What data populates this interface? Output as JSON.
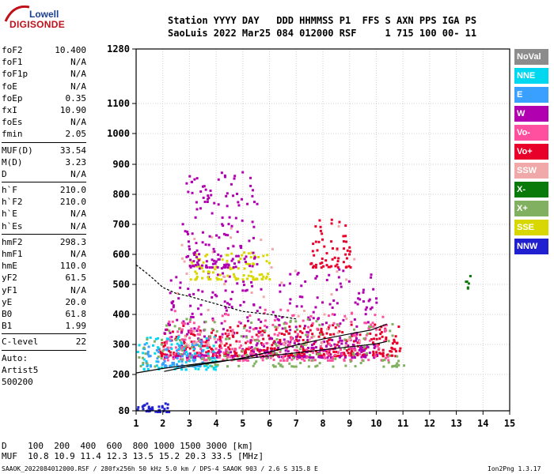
{
  "logo": {
    "top": "Lowell",
    "bottom": "DIGISONDE"
  },
  "header": {
    "line1": "Station YYYY DAY   DDD HHMMSS P1  FFS S AXN PPS IGA PS",
    "line2": "SaoLuis 2022 Mar25 084 012000 RSF     1 715 100 00- 11"
  },
  "params_group1": [
    {
      "name": "foF2",
      "value": "10.400"
    },
    {
      "name": "foF1",
      "value": "N/A"
    },
    {
      "name": "foF1p",
      "value": "N/A"
    },
    {
      "name": "foE",
      "value": "N/A"
    },
    {
      "name": "foEp",
      "value": "0.35"
    },
    {
      "name": "fxI",
      "value": "10.90"
    },
    {
      "name": "foEs",
      "value": "N/A"
    },
    {
      "name": "fmin",
      "value": "2.05"
    }
  ],
  "params_group2": [
    {
      "name": "MUF(D)",
      "value": "33.54"
    },
    {
      "name": "M(D)",
      "value": "3.23"
    },
    {
      "name": "D",
      "value": "N/A"
    }
  ],
  "params_group3": [
    {
      "name": "h`F",
      "value": "210.0"
    },
    {
      "name": "h`F2",
      "value": "210.0"
    },
    {
      "name": "h`E",
      "value": "N/A"
    },
    {
      "name": "h`Es",
      "value": "N/A"
    }
  ],
  "params_group4": [
    {
      "name": "hmF2",
      "value": "298.3"
    },
    {
      "name": "hmF1",
      "value": "N/A"
    },
    {
      "name": "hmE",
      "value": "110.0"
    },
    {
      "name": "yF2",
      "value": "61.5"
    },
    {
      "name": "yF1",
      "value": "N/A"
    },
    {
      "name": "yE",
      "value": "20.0"
    },
    {
      "name": "B0",
      "value": "61.8"
    },
    {
      "name": "B1",
      "value": "1.99"
    }
  ],
  "c_level": {
    "name": "C-level",
    "value": "22"
  },
  "auto": {
    "line1": "Auto:",
    "line2": "Artist5",
    "line3": "500200"
  },
  "legend": [
    {
      "label": "NoVal",
      "color": "#8c8c8c"
    },
    {
      "label": "NNE",
      "color": "#00d8f0"
    },
    {
      "label": "E",
      "color": "#3aa0ff"
    },
    {
      "label": "W",
      "color": "#b000b0"
    },
    {
      "label": "Vo-",
      "color": "#ff50a0"
    },
    {
      "label": "Vo+",
      "color": "#e8002a"
    },
    {
      "label": "SSW",
      "color": "#f0a8a8"
    },
    {
      "label": "X-",
      "color": "#0a7a0a"
    },
    {
      "label": "X+",
      "color": "#80b060"
    },
    {
      "label": "SSE",
      "color": "#d8d800"
    },
    {
      "label": "NNW",
      "color": "#2020d0"
    }
  ],
  "footer": {
    "line1": "D    100  200  400  600  800 1000 1500 3000 [km]",
    "line2": "MUF  10.8 10.9 11.4 12.3 13.5 15.2 20.3 33.5 [MHz]",
    "line3": "SAAOK_2022084012000.RSF / 280fx256h 50 kHz 5.0 km / DPS-4 SAAOK 903 / 2.6 S 315.8 E",
    "line4": "Ion2Png 1.3.17"
  },
  "chart_data": {
    "type": "scatter",
    "title": "",
    "xlabel": "",
    "ylabel": "",
    "xlim": [
      1,
      15
    ],
    "ylim": [
      80,
      1280
    ],
    "x_ticks": [
      "1",
      "2",
      "3",
      "4",
      "5",
      "6",
      "7",
      "8",
      "9",
      "10",
      "11",
      "12",
      "13",
      "14",
      "15"
    ],
    "y_ticks": [
      "80",
      "200",
      "300",
      "400",
      "500",
      "600",
      "700",
      "800",
      "900",
      "1000",
      "1100",
      "1280"
    ],
    "grid": "on",
    "trace_profile": {
      "x": [
        1.0,
        2.0,
        3.0,
        4.0,
        5.0,
        6.0,
        7.0,
        8.0,
        9.0,
        10.0,
        10.4
      ],
      "y": [
        205,
        220,
        232,
        243,
        252,
        262,
        272,
        282,
        292,
        302,
        310
      ]
    },
    "trace_virtual_height": {
      "x": [
        2.05,
        3.0,
        4.0,
        5.0,
        6.0,
        7.0,
        8.0,
        9.0,
        9.8,
        10.4
      ],
      "y": [
        210,
        228,
        240,
        255,
        275,
        298,
        318,
        335,
        348,
        368
      ]
    },
    "profile_upper": {
      "x": [
        1.0,
        1.5,
        2.0,
        2.5,
        3.0,
        4.0,
        5.0,
        6.0,
        7.0
      ],
      "y": [
        565,
        530,
        490,
        470,
        460,
        435,
        410,
        400,
        385
      ]
    },
    "clusters": [
      {
        "color": "#e8002a",
        "x_range": [
          1.8,
          10.9
        ],
        "y_range": [
          265,
          370
        ],
        "count": 420
      },
      {
        "color": "#b000b0",
        "x_range": [
          2.0,
          10.0
        ],
        "y_range": [
          260,
          560
        ],
        "count": 380
      },
      {
        "color": "#ff50a0",
        "x_range": [
          2.0,
          10.5
        ],
        "y_range": [
          250,
          420
        ],
        "count": 250
      },
      {
        "color": "#d8d800",
        "x_range": [
          3.0,
          6.0
        ],
        "y_range": [
          520,
          610
        ],
        "count": 90
      },
      {
        "color": "#00d8f0",
        "x_range": [
          1.0,
          4.0
        ],
        "y_range": [
          220,
          330
        ],
        "count": 90
      },
      {
        "color": "#3aa0ff",
        "x_range": [
          1.2,
          3.5
        ],
        "y_range": [
          230,
          320
        ],
        "count": 70
      },
      {
        "color": "#2020d0",
        "x_range": [
          1.0,
          2.2
        ],
        "y_range": [
          80,
          110
        ],
        "count": 40
      },
      {
        "color": "#80b060",
        "x_range": [
          1.0,
          11.0
        ],
        "y_range": [
          230,
          390
        ],
        "count": 160
      },
      {
        "color": "#0a7a0a",
        "x_range": [
          13.3,
          13.5
        ],
        "y_range": [
          490,
          540
        ],
        "count": 6
      },
      {
        "color": "#f0a8a8",
        "x_range": [
          2.5,
          9.5
        ],
        "y_range": [
          300,
          700
        ],
        "count": 60
      },
      {
        "color": "#b000b0",
        "x_range": [
          2.7,
          5.5
        ],
        "y_range": [
          560,
          880
        ],
        "count": 150
      },
      {
        "color": "#e8002a",
        "x_range": [
          7.5,
          9.0
        ],
        "y_range": [
          560,
          720
        ],
        "count": 60
      }
    ]
  }
}
